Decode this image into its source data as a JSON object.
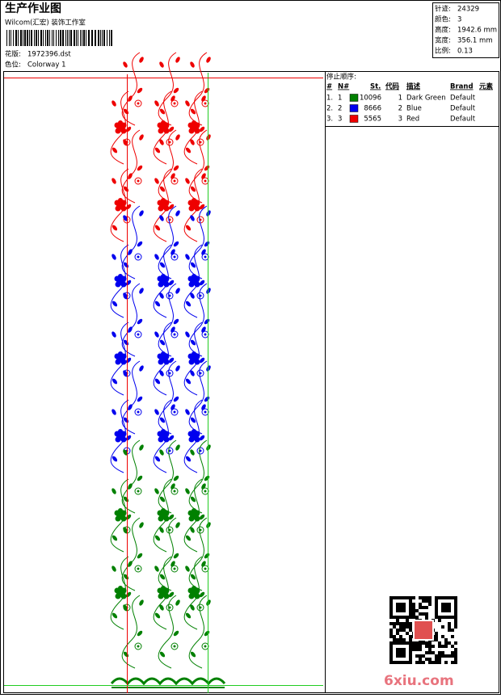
{
  "header": {
    "title": "生产作业图",
    "company": "Wilcom(汇宏) 装饰工作室",
    "design_label": "花版:",
    "design": "1972396.dst",
    "colorway_label": "色位:",
    "colorway": "Colorway 1"
  },
  "stats": [
    {
      "label": "针迹:",
      "value": "24329"
    },
    {
      "label": "颜色:",
      "value": "3"
    },
    {
      "label": "高度:",
      "value": "1942.6 mm"
    },
    {
      "label": "宽度:",
      "value": "356.1 mm"
    },
    {
      "label": "比例:",
      "value": "0.13"
    }
  ],
  "sequence": {
    "title": "停止顺序:",
    "columns": [
      "#",
      "N#",
      "St.",
      "代码",
      "描述",
      "Brand",
      "元素"
    ],
    "rows": [
      {
        "index": "1.",
        "n": "1",
        "color": "#008000",
        "stitches": "10096",
        "code": "1",
        "description": "Dark Green",
        "brand": "Default"
      },
      {
        "index": "2.",
        "n": "2",
        "color": "#0000ee",
        "stitches": "8666",
        "code": "2",
        "description": "Blue",
        "brand": "Default"
      },
      {
        "index": "3.",
        "n": "3",
        "color": "#ee0000",
        "stitches": "5565",
        "code": "3",
        "description": "Red",
        "brand": "Default"
      }
    ]
  },
  "watermark": "6xiu.com"
}
